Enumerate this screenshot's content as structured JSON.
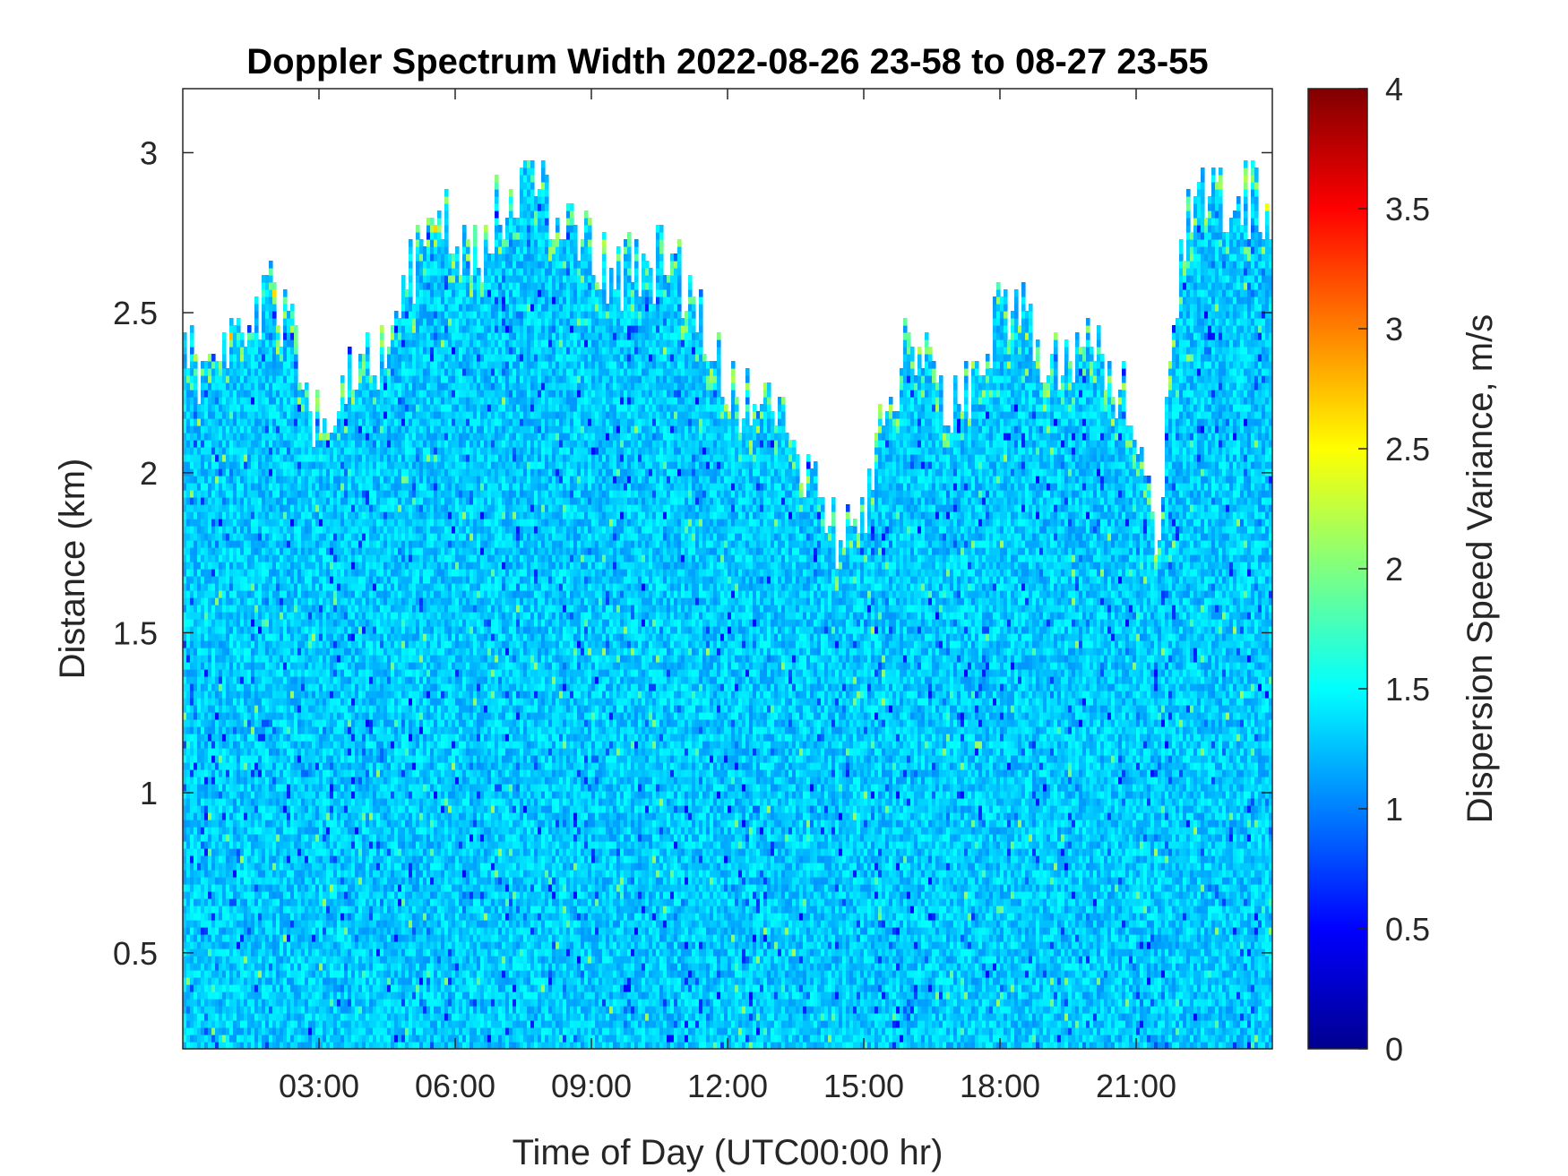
{
  "chart_data": {
    "type": "heatmap",
    "title": "Doppler Spectrum Width 2022-08-26 23-58 to 08-27 23-55",
    "xlabel": "Time of Day (UTC00:00 hr)",
    "ylabel": "Distance (km)",
    "xlim": [
      0,
      24
    ],
    "ylim": [
      0.2,
      3.2
    ],
    "x_ticks": [
      {
        "value": 3,
        "label": "03:00"
      },
      {
        "value": 6,
        "label": "06:00"
      },
      {
        "value": 9,
        "label": "09:00"
      },
      {
        "value": 12,
        "label": "12:00"
      },
      {
        "value": 15,
        "label": "15:00"
      },
      {
        "value": 18,
        "label": "18:00"
      },
      {
        "value": 21,
        "label": "21:00"
      }
    ],
    "y_ticks": [
      {
        "value": 0.5,
        "label": "0.5"
      },
      {
        "value": 1,
        "label": "1"
      },
      {
        "value": 1.5,
        "label": "1.5"
      },
      {
        "value": 2,
        "label": "2"
      },
      {
        "value": 2.5,
        "label": "2.5"
      },
      {
        "value": 3,
        "label": "3"
      }
    ],
    "colorbar": {
      "label": "Dispersion Speed Variance, m/s",
      "range": [
        0,
        4
      ],
      "colormap": "jet",
      "ticks": [
        {
          "value": 0,
          "label": "0"
        },
        {
          "value": 0.5,
          "label": "0.5"
        },
        {
          "value": 1,
          "label": "1"
        },
        {
          "value": 1.5,
          "label": "1.5"
        },
        {
          "value": 2,
          "label": "2"
        },
        {
          "value": 2.5,
          "label": "2.5"
        },
        {
          "value": 3,
          "label": "3"
        },
        {
          "value": 3.5,
          "label": "3.5"
        },
        {
          "value": 4,
          "label": "4"
        }
      ]
    },
    "echo_top_km": {
      "x": [
        0,
        0.5,
        1,
        1.5,
        2,
        2.5,
        3,
        3.5,
        4,
        4.5,
        5,
        5.5,
        6,
        6.5,
        7,
        7.5,
        8,
        8.5,
        9,
        9.5,
        10,
        10.5,
        11,
        11.5,
        12,
        12.5,
        13,
        13.5,
        14,
        14.5,
        15,
        15.5,
        16,
        16.5,
        17,
        17.5,
        18,
        18.5,
        19,
        19.5,
        20,
        20.5,
        21,
        21.5,
        22,
        22.5,
        23,
        23.5,
        24
      ],
      "y": [
        2.4,
        2.3,
        2.35,
        2.5,
        2.55,
        2.4,
        2.15,
        2.3,
        2.4,
        2.35,
        2.6,
        2.85,
        2.7,
        2.65,
        2.85,
        2.9,
        2.85,
        2.75,
        2.7,
        2.6,
        2.65,
        2.65,
        2.6,
        2.45,
        2.3,
        2.2,
        2.2,
        2.1,
        1.9,
        1.8,
        1.9,
        2.2,
        2.4,
        2.35,
        2.2,
        2.3,
        2.5,
        2.5,
        2.35,
        2.3,
        2.4,
        2.3,
        2.2,
        1.8,
        2.75,
        2.85,
        2.85,
        2.85,
        2.8
      ]
    },
    "typical_value": 1.3,
    "colorbar_range": [
      0,
      4
    ]
  }
}
